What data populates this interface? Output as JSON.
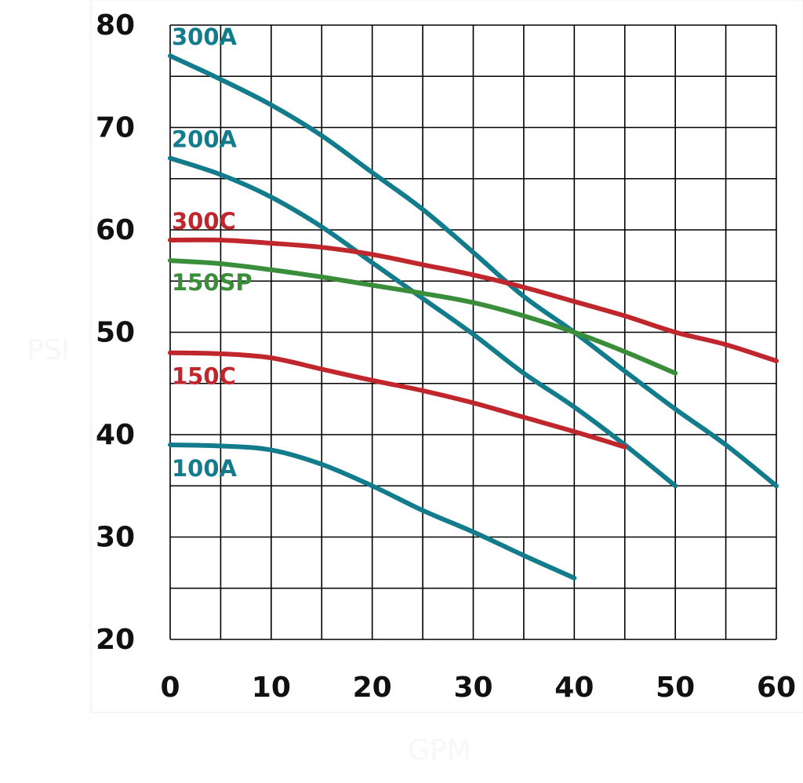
{
  "chart_data": {
    "type": "line",
    "xlabel": "GPM",
    "ylabel": "PSI",
    "xlim": [
      0,
      60
    ],
    "ylim": [
      20,
      80
    ],
    "x_ticks": [
      "0",
      "10",
      "20",
      "30",
      "40",
      "50",
      "60"
    ],
    "y_ticks": [
      "20",
      "30",
      "40",
      "50",
      "60",
      "70",
      "80"
    ],
    "grid": true,
    "series": [
      {
        "name": "300A",
        "color": "#137c8c",
        "x": [
          0,
          5,
          10,
          15,
          20,
          25,
          30,
          35,
          40,
          45,
          50,
          55,
          60
        ],
        "y": [
          77,
          74.7,
          72.2,
          69.2,
          65.6,
          62,
          57.8,
          53.5,
          50,
          46.2,
          42.5,
          39,
          35
        ]
      },
      {
        "name": "200A",
        "color": "#137c8c",
        "x": [
          0,
          5,
          10,
          15,
          20,
          25,
          30,
          35,
          40,
          45,
          50
        ],
        "y": [
          67,
          65.4,
          63.2,
          60.3,
          56.8,
          53.3,
          49.8,
          46,
          42.7,
          39,
          35
        ]
      },
      {
        "name": "300C",
        "color": "#c0272d",
        "x": [
          0,
          5,
          10,
          15,
          20,
          25,
          30,
          35,
          40,
          45,
          50,
          55,
          60
        ],
        "y": [
          59,
          59,
          58.7,
          58.3,
          57.6,
          56.6,
          55.6,
          54.4,
          53,
          51.6,
          50,
          48.8,
          47.2
        ]
      },
      {
        "name": "150SP",
        "color": "#3a8e3a",
        "x": [
          0,
          5,
          10,
          15,
          20,
          25,
          30,
          35,
          40,
          45,
          50
        ],
        "y": [
          57,
          56.7,
          56.1,
          55.4,
          54.6,
          53.8,
          52.9,
          51.6,
          50,
          48.1,
          46
        ]
      },
      {
        "name": "150C",
        "color": "#c0272d",
        "x": [
          0,
          5,
          10,
          15,
          20,
          25,
          30,
          35,
          40,
          45
        ],
        "y": [
          48,
          47.9,
          47.5,
          46.4,
          45.3,
          44.3,
          43.1,
          41.7,
          40.3,
          38.8
        ]
      },
      {
        "name": "100A",
        "color": "#137c8c",
        "x": [
          0,
          5,
          10,
          15,
          20,
          25,
          30,
          35,
          40
        ],
        "y": [
          39,
          38.9,
          38.5,
          37.1,
          35,
          32.6,
          30.5,
          28.2,
          26
        ]
      }
    ]
  }
}
